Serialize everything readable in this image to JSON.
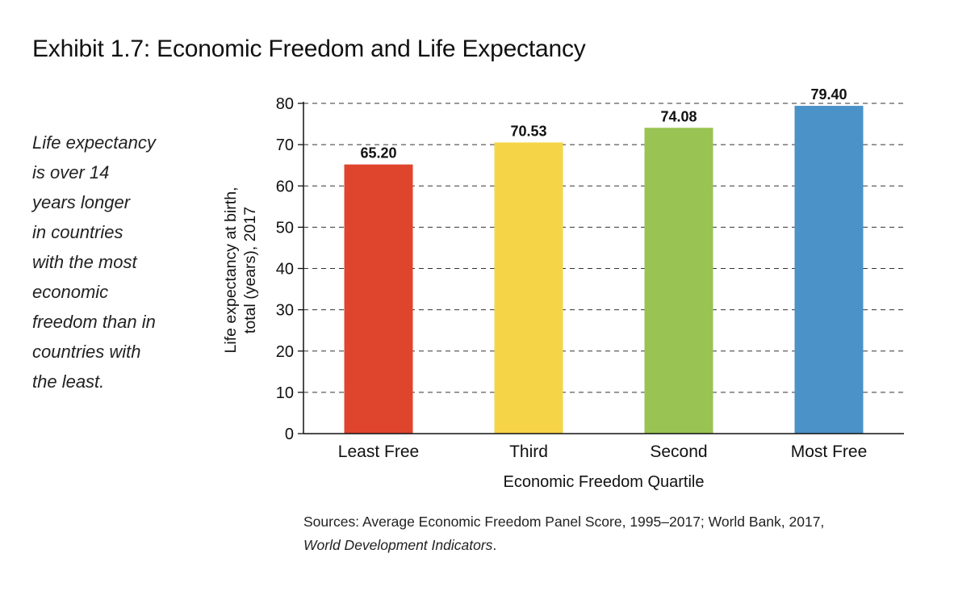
{
  "title": "Exhibit 1.7: Economic Freedom and Life Expectancy",
  "side_note_lines": [
    "Life expectancy",
    "is over 14",
    "years longer",
    "in countries",
    "with the most",
    "economic",
    "freedom than in",
    "countries with",
    "the least."
  ],
  "source": {
    "line1": "Sources: Average Economic Freedom Panel Score, 1995–2017; World Bank, 2017,",
    "line2_italic": "World Development Indicators",
    "line2_end": "."
  },
  "chart_data": {
    "type": "bar",
    "categories": [
      "Least Free",
      "Third",
      "Second",
      "Most Free"
    ],
    "values": [
      65.2,
      70.53,
      74.08,
      79.4
    ],
    "value_labels": [
      "65.20",
      "70.53",
      "74.08",
      "79.40"
    ],
    "colors": [
      "#df452d",
      "#f5d447",
      "#99c353",
      "#4a92c8"
    ],
    "xlabel": "Economic Freedom Quartile",
    "ylabel_lines": [
      "Life expectancy at birth,",
      "total (years), 2017"
    ],
    "ylim": [
      0,
      80
    ],
    "yticks": [
      0,
      10,
      20,
      30,
      40,
      50,
      60,
      70,
      80
    ],
    "grid": "dashed horizontal",
    "legend": "none"
  }
}
